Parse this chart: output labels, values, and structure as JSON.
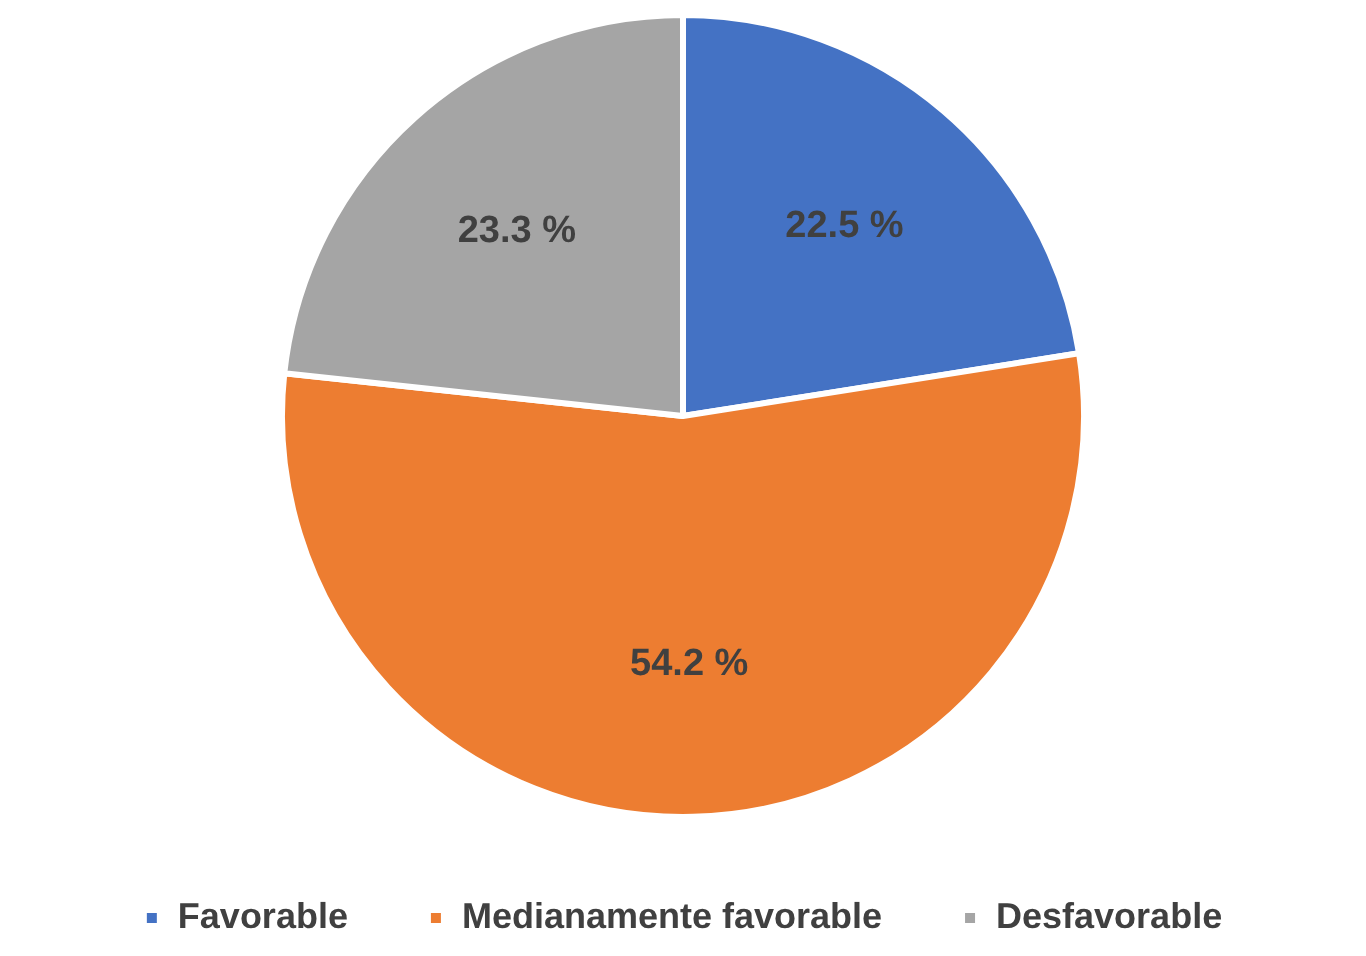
{
  "chart_data": {
    "type": "pie",
    "categories": [
      "Favorable",
      "Medianamente favorable",
      "Desfavorable"
    ],
    "values": [
      22.5,
      54.2,
      23.3
    ],
    "colors": [
      "#4472c4",
      "#ed7d31",
      "#a5a5a5"
    ],
    "value_labels": [
      "22.5 %",
      "54.2 %",
      "23.3 %"
    ],
    "legend": "bottom"
  }
}
